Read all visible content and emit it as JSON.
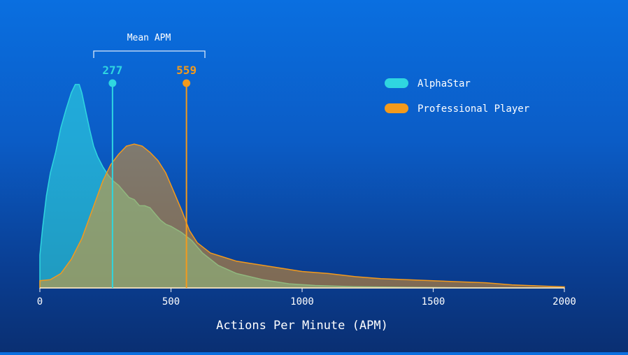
{
  "chart_data": {
    "type": "area",
    "title": "",
    "xlabel": "Actions Per Minute (APM)",
    "ylabel": "",
    "xlim": [
      0,
      2000
    ],
    "x_ticks": [
      "0",
      "500",
      "1000",
      "1500",
      "2000"
    ],
    "grid": false,
    "legend_position": "top-right",
    "series": [
      {
        "name": "AlphaStar",
        "color": "#2fd6e0",
        "x": [
          0,
          10,
          25,
          40,
          60,
          80,
          100,
          120,
          135,
          150,
          160,
          175,
          190,
          205,
          220,
          240,
          260,
          280,
          300,
          320,
          340,
          360,
          380,
          400,
          420,
          440,
          460,
          480,
          500,
          540,
          580,
          620,
          680,
          750,
          850,
          950,
          1050,
          1200,
          1400,
          1600,
          2000
        ],
        "values": [
          0.16,
          0.29,
          0.45,
          0.56,
          0.66,
          0.78,
          0.87,
          0.95,
          0.99,
          0.99,
          0.95,
          0.86,
          0.77,
          0.69,
          0.64,
          0.59,
          0.55,
          0.52,
          0.5,
          0.47,
          0.44,
          0.43,
          0.4,
          0.4,
          0.39,
          0.36,
          0.33,
          0.31,
          0.3,
          0.27,
          0.23,
          0.17,
          0.11,
          0.07,
          0.04,
          0.02,
          0.012,
          0.006,
          0.003,
          0.001,
          0.0
        ]
      },
      {
        "name": "Professional Player",
        "color": "#f39a1c",
        "x": [
          0,
          40,
          80,
          120,
          160,
          200,
          240,
          270,
          300,
          330,
          360,
          390,
          420,
          450,
          480,
          510,
          540,
          570,
          600,
          650,
          700,
          750,
          800,
          900,
          1000,
          1100,
          1200,
          1300,
          1400,
          1500,
          1600,
          1700,
          1800,
          1900,
          2000
        ],
        "values": [
          0.035,
          0.04,
          0.07,
          0.14,
          0.24,
          0.38,
          0.52,
          0.6,
          0.65,
          0.69,
          0.7,
          0.69,
          0.66,
          0.62,
          0.56,
          0.47,
          0.38,
          0.28,
          0.22,
          0.17,
          0.15,
          0.13,
          0.12,
          0.1,
          0.08,
          0.07,
          0.055,
          0.045,
          0.04,
          0.035,
          0.03,
          0.025,
          0.015,
          0.01,
          0.005
        ]
      }
    ],
    "annotations": {
      "bracket_label": "Mean APM",
      "means": [
        {
          "series": "AlphaStar",
          "value": 277,
          "label": "277"
        },
        {
          "series": "Professional Player",
          "value": 559,
          "label": "559"
        }
      ]
    }
  }
}
